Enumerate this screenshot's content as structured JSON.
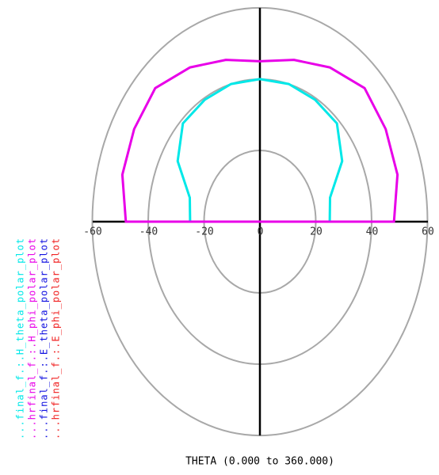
{
  "chart_data": {
    "type": "polar",
    "xlabel": "THETA (0.000 to 360.000)",
    "theta": [
      -90,
      -75,
      -60,
      -45,
      -30,
      -15,
      0,
      15,
      30,
      45,
      60,
      75,
      90
    ],
    "xlim": [
      -60,
      60
    ],
    "xticks": [
      -60,
      -40,
      -20,
      0,
      20,
      40,
      60
    ],
    "series": [
      {
        "name": "...final_f.:.H_theta_polar_plot",
        "color": "#00e8e8",
        "values": [
          25,
          26,
          34,
          39,
          39.5,
          40,
          40,
          40,
          39.5,
          39,
          34,
          26,
          25
        ]
      },
      {
        "name": "...hrfinal_f.:.H_phi_polar_plot",
        "color": "#e800e8",
        "values": [
          48,
          51,
          52,
          53,
          50,
          47,
          45,
          47,
          50,
          53,
          52,
          51,
          48
        ]
      },
      {
        "name": "...final_f.:.E_theta_polar_plot",
        "color": "#1010e0"
      },
      {
        "name": "...hrfinal_f.:.E_phi_polar_plot",
        "color": "#f02020"
      }
    ]
  }
}
